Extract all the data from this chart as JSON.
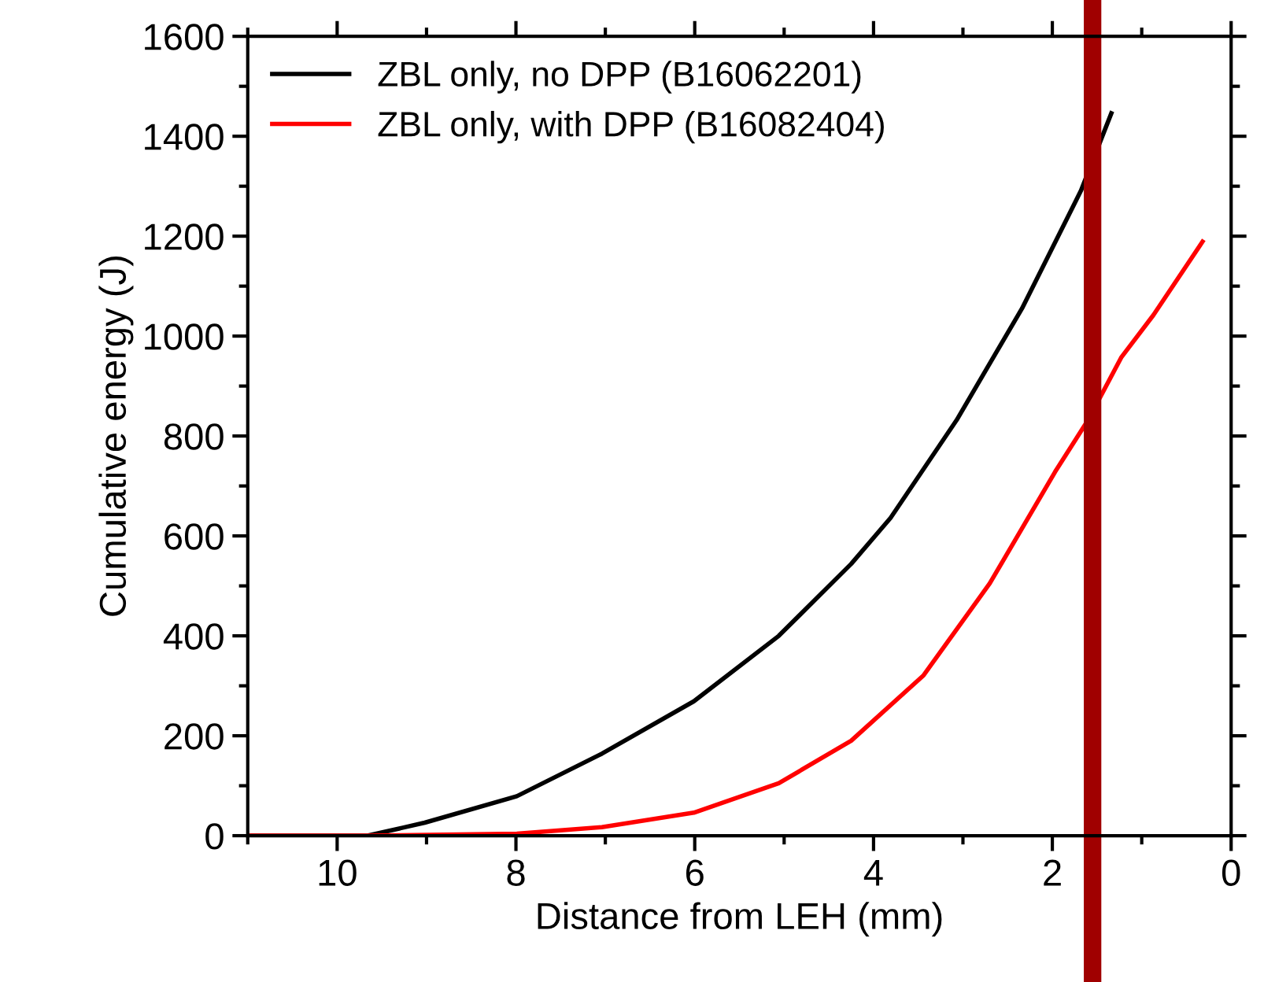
{
  "chart_data": {
    "type": "line",
    "xlabel": "Distance from LEH (mm)",
    "ylabel": "Cumulative energy (J)",
    "xlim": [
      11,
      0
    ],
    "ylim": [
      0,
      1600
    ],
    "xticks": [
      {
        "value": 11,
        "label": null
      },
      10,
      {
        "value": 9,
        "label": null
      },
      8,
      {
        "value": 7,
        "label": null
      },
      6,
      {
        "value": 5,
        "label": null
      },
      4,
      {
        "value": 3,
        "label": null
      },
      2,
      {
        "value": 1,
        "label": null
      },
      0
    ],
    "yticks": [
      0,
      {
        "value": 100,
        "label": null
      },
      200,
      {
        "value": 300,
        "label": null
      },
      400,
      {
        "value": 500,
        "label": null
      },
      600,
      {
        "value": 700,
        "label": null
      },
      800,
      {
        "value": 900,
        "label": null
      },
      1000,
      {
        "value": 1100,
        "label": null
      },
      1200,
      {
        "value": 1300,
        "label": null
      },
      1400,
      {
        "value": 1500,
        "label": null
      },
      1600
    ],
    "grid": false,
    "legend": "top left",
    "marker": "none",
    "line_style": "solid",
    "series": [
      {
        "name": "ZBL only, no DPP (B16062201)",
        "color": "#000000",
        "x": [
          11.0,
          9.66,
          9.02,
          7.99,
          7.04,
          6.01,
          5.06,
          4.25,
          3.81,
          3.07,
          2.34,
          1.68,
          1.34
        ],
        "values": [
          0,
          0,
          26,
          79,
          164,
          269,
          400,
          544,
          636,
          832,
          1055,
          1291,
          1446
        ]
      },
      {
        "name": "ZBL only, with DPP (B16082404)",
        "color": "#ff0000",
        "x": [
          11.0,
          9.66,
          7.99,
          7.04,
          6.01,
          5.06,
          4.25,
          3.44,
          2.7,
          1.97,
          1.6,
          1.23,
          0.87,
          0.32
        ],
        "values": [
          0,
          0,
          4,
          17,
          46,
          105,
          190,
          321,
          505,
          728,
          832,
          957,
          1042,
          1189
        ]
      }
    ],
    "ref_lines": [
      {
        "axis": "x",
        "value": 1.55,
        "color": "#a00000",
        "line_style": "solid"
      }
    ]
  }
}
